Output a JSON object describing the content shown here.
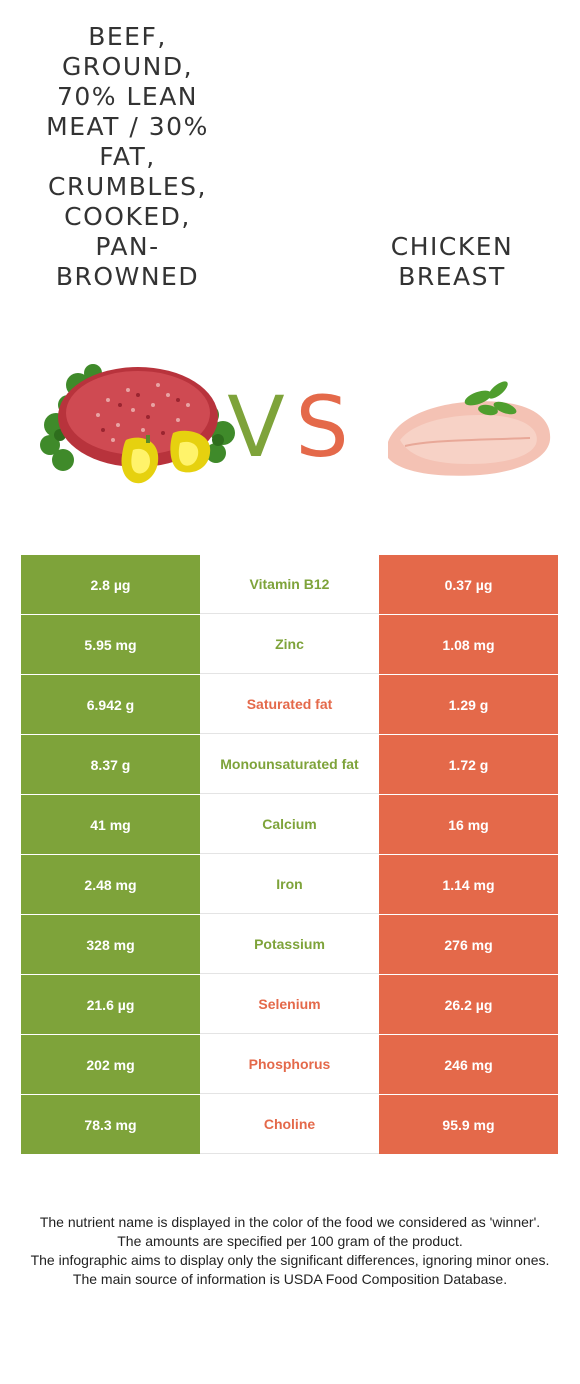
{
  "foods": {
    "left": {
      "name": "Beef, ground, 70% lean meat / 30% fat, crumbles, cooked, pan-browned",
      "color": "#7ea33a"
    },
    "right": {
      "name": "Chicken breast",
      "color": "#e4694a"
    }
  },
  "vs": {
    "v": "V",
    "s": "S"
  },
  "rows": [
    {
      "left": "2.8 µg",
      "nutrient": "Vitamin B12",
      "right": "0.37 µg",
      "winner": "left"
    },
    {
      "left": "5.95 mg",
      "nutrient": "Zinc",
      "right": "1.08 mg",
      "winner": "left"
    },
    {
      "left": "6.942 g",
      "nutrient": "Saturated fat",
      "right": "1.29 g",
      "winner": "right"
    },
    {
      "left": "8.37 g",
      "nutrient": "Monounsaturated fat",
      "right": "1.72 g",
      "winner": "left"
    },
    {
      "left": "41 mg",
      "nutrient": "Calcium",
      "right": "16 mg",
      "winner": "left"
    },
    {
      "left": "2.48 mg",
      "nutrient": "Iron",
      "right": "1.14 mg",
      "winner": "left"
    },
    {
      "left": "328 mg",
      "nutrient": "Potassium",
      "right": "276 mg",
      "winner": "left"
    },
    {
      "left": "21.6 µg",
      "nutrient": "Selenium",
      "right": "26.2 µg",
      "winner": "right"
    },
    {
      "left": "202 mg",
      "nutrient": "Phosphorus",
      "right": "246 mg",
      "winner": "right"
    },
    {
      "left": "78.3 mg",
      "nutrient": "Choline",
      "right": "95.9 mg",
      "winner": "right"
    }
  ],
  "footer": [
    "The nutrient name is displayed in the color of the food we considered as 'winner'.",
    "The amounts are specified per 100 gram of the product.",
    "The infographic aims to display only the significant differences, ignoring minor ones.",
    "The main source of information is USDA Food Composition Database."
  ]
}
